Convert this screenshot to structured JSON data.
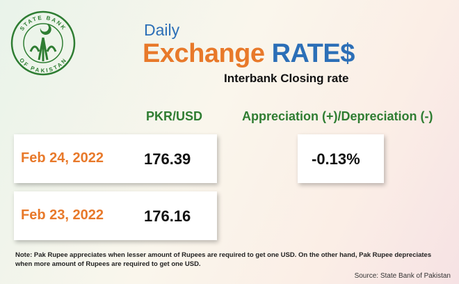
{
  "logo": {
    "top": "STATE BANK",
    "bottom": "OF PAKISTAN"
  },
  "header": {
    "daily": "Daily",
    "exchange": "Exchange",
    "rates": "RATE$",
    "subtitle": "Interbank Closing rate"
  },
  "columns": [
    "PKR/USD",
    "Appreciation (+)/Depreciation (-)"
  ],
  "rows": [
    {
      "date": "Feb 24, 2022",
      "rate": 176.39
    },
    {
      "date": "Feb 23, 2022",
      "rate": 176.16
    }
  ],
  "change": "-0.13%",
  "note": "Note: Pak Rupee appreciates when lesser amount of Rupees are required to get one USD.  On the other hand, Pak Rupee depreciates when more amount of Rupees are required to get one USD.",
  "source": "Source: State Bank of Pakistan"
}
